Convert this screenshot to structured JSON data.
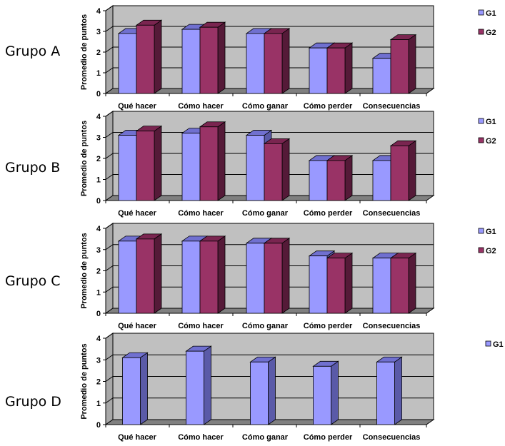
{
  "colors": {
    "g1_front": "#9999ff",
    "g1_side": "#5a5aa8",
    "g1_top": "#7070d0",
    "g2_front": "#993366",
    "g2_side": "#551a38",
    "g2_top": "#7a2550",
    "wall": "#c0c0c0",
    "floor": "#808080"
  },
  "chart_data": [
    {
      "type": "bar",
      "group_label": "Grupo A",
      "ylabel": "Promedio de puntos",
      "ylim": [
        0,
        4
      ],
      "yticks": [
        "0",
        "1",
        "2",
        "3",
        "4"
      ],
      "categories": [
        "Qué hacer",
        "Cómo hacer",
        "Cómo ganar",
        "Cómo perder",
        "Consecuencias"
      ],
      "series": [
        {
          "name": "G1",
          "values": [
            2.9,
            3.1,
            2.9,
            2.2,
            1.7
          ]
        },
        {
          "name": "G2",
          "values": [
            3.3,
            3.2,
            2.9,
            2.2,
            2.6
          ]
        }
      ],
      "legend": "right"
    },
    {
      "type": "bar",
      "group_label": "Grupo B",
      "ylabel": "Promedio de puntos",
      "ylim": [
        0,
        4
      ],
      "yticks": [
        "0",
        "1",
        "2",
        "3",
        "4"
      ],
      "categories": [
        "Qué hacer",
        "Cómo hacer",
        "Cómo ganar",
        "Cómo perder",
        "Consecuencias"
      ],
      "series": [
        {
          "name": "G1",
          "values": [
            3.1,
            3.2,
            3.1,
            1.9,
            1.9
          ]
        },
        {
          "name": "G2",
          "values": [
            3.3,
            3.5,
            2.7,
            1.9,
            2.6
          ]
        }
      ],
      "legend": "right"
    },
    {
      "type": "bar",
      "group_label": "Grupo C",
      "ylabel": "Promedio de puntos",
      "ylim": [
        0,
        4
      ],
      "yticks": [
        "0",
        "1",
        "2",
        "3",
        "4"
      ],
      "categories": [
        "Qué hacer",
        "Cómo hacer",
        "Cómo ganar",
        "Cómo perder",
        "Consecuencias"
      ],
      "series": [
        {
          "name": "G1",
          "values": [
            3.4,
            3.4,
            3.3,
            2.7,
            2.6
          ]
        },
        {
          "name": "G2",
          "values": [
            3.5,
            3.4,
            3.3,
            2.6,
            2.6
          ]
        }
      ],
      "legend": "right"
    },
    {
      "type": "bar",
      "group_label": "Grupo D",
      "ylabel": "Promedio de puntos",
      "ylim": [
        0,
        4
      ],
      "yticks": [
        "0",
        "1",
        "2",
        "3",
        "4"
      ],
      "categories": [
        "Qué hacer",
        "Cómo hacer",
        "Cómo ganar",
        "Cómo perder",
        "Consecuencias"
      ],
      "series": [
        {
          "name": "G1",
          "values": [
            3.1,
            3.4,
            2.9,
            2.7,
            2.9
          ]
        }
      ],
      "legend": "right"
    }
  ]
}
